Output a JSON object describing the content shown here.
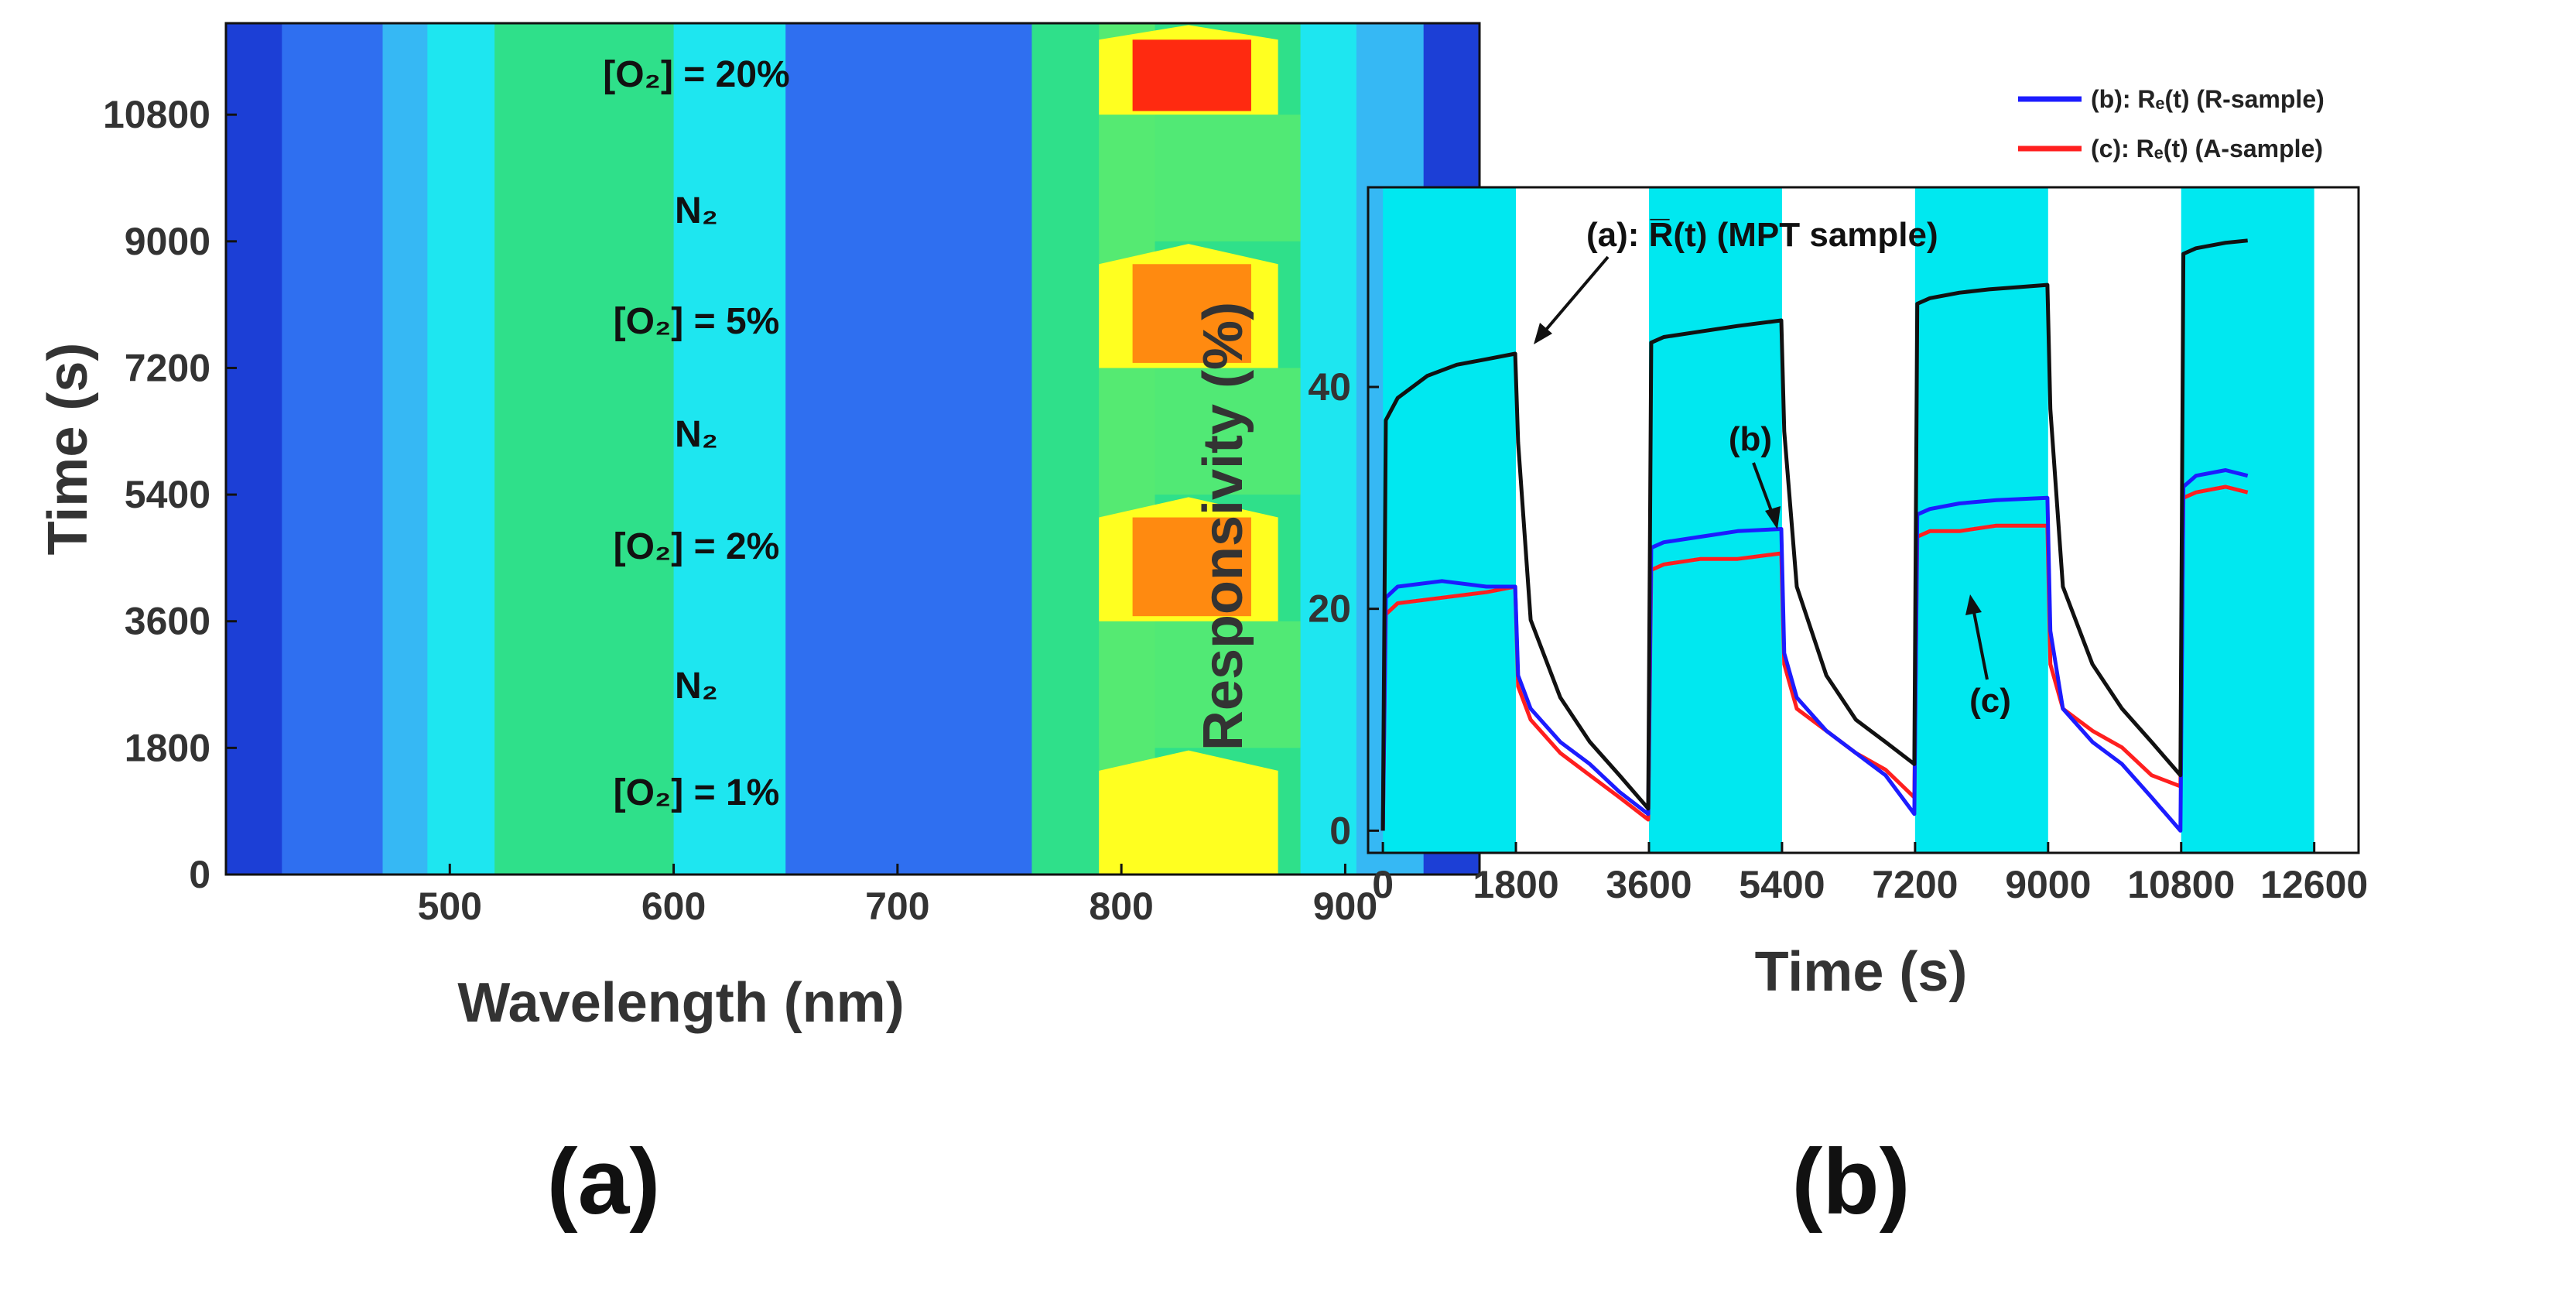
{
  "colors": {
    "deep_blue": "#1c3fd6",
    "blue": "#2f6ff0",
    "sky": "#36b8f4",
    "cyan": "#1ee6f0",
    "green": "#2fe08a",
    "green_light": "#55ea72",
    "yellow": "#ffff20",
    "orange": "#ff8a10",
    "red": "#ff2a10",
    "shade": "#00e8f0",
    "curve_a": "#111111",
    "curve_b": "#1c1cff",
    "curve_c": "#ff1f1f"
  },
  "panel_a": {
    "panel_label": "(a)",
    "xlabel": "Wavelength (nm)",
    "ylabel": "Time (s)",
    "labels": {
      "o2_20": "[O₂] = 20%",
      "n2_top": "N₂",
      "o2_5": "[O₂] = 5%",
      "n2_mid": "N₂",
      "o2_2": "[O₂] = 2%",
      "n2_bot": "N₂",
      "o2_1": "[O₂] = 1%"
    }
  },
  "panel_b": {
    "panel_label": "(b)",
    "annotations": {
      "a_label": "(a): R̅(t) (MPT sample)",
      "b_label": "(b)",
      "c_label": "(c)"
    },
    "legend": [
      {
        "label": "(b): Rₑ(t) (R-sample)",
        "color": "#1c1cff"
      },
      {
        "label": "(c): Rₑ(t) (A-sample)",
        "color": "#ff1f1f"
      }
    ]
  },
  "chart_data": [
    {
      "type": "heatmap",
      "title": "",
      "xlabel": "Wavelength (nm)",
      "ylabel": "Time (s)",
      "xlim": [
        400,
        960
      ],
      "ylim": [
        0,
        12100
      ],
      "xticks": [
        500,
        600,
        700,
        800,
        900
      ],
      "yticks": [
        0,
        1800,
        3600,
        5400,
        7200,
        9000,
        10800
      ],
      "intervals": [
        {
          "start": 0,
          "end": 1800,
          "gas": "[O2] = 1%",
          "peak": "yellow"
        },
        {
          "start": 1800,
          "end": 3600,
          "gas": "N2",
          "peak": "green"
        },
        {
          "start": 3600,
          "end": 5400,
          "gas": "[O2] = 2%",
          "peak": "orange"
        },
        {
          "start": 5400,
          "end": 7200,
          "gas": "N2",
          "peak": "green"
        },
        {
          "start": 7200,
          "end": 9000,
          "gas": "[O2] = 5%",
          "peak": "orange"
        },
        {
          "start": 9000,
          "end": 10800,
          "gas": "N2",
          "peak": "green"
        },
        {
          "start": 10800,
          "end": 12100,
          "gas": "[O2] = 20%",
          "peak": "red"
        }
      ]
    },
    {
      "type": "line",
      "title": "",
      "xlabel": "Time (s)",
      "ylabel": "Responsivity (%)",
      "xlim": [
        -200,
        13200
      ],
      "ylim": [
        -2,
        58
      ],
      "xticks": [
        0,
        1800,
        3600,
        5400,
        7200,
        9000,
        10800,
        12600
      ],
      "yticks": [
        0,
        20,
        40
      ],
      "shaded_intervals": [
        [
          0,
          1800
        ],
        [
          3600,
          5400
        ],
        [
          7200,
          9000
        ],
        [
          10800,
          12600
        ]
      ],
      "series": [
        {
          "name": "(a): R̅(t) (MPT sample)",
          "color": "#111111",
          "x": [
            0,
            40,
            200,
            600,
            1000,
            1400,
            1790,
            1830,
            2000,
            2400,
            2800,
            3200,
            3590,
            3630,
            3800,
            4300,
            4800,
            5390,
            5430,
            5600,
            6000,
            6400,
            6800,
            7190,
            7230,
            7400,
            7800,
            8200,
            8600,
            8990,
            9030,
            9200,
            9600,
            10000,
            10400,
            10790,
            10830,
            11000,
            11400,
            11700
          ],
          "y": [
            0,
            37,
            39,
            41,
            42,
            42.5,
            43,
            35,
            19,
            12,
            8,
            5,
            2,
            44,
            44.5,
            45,
            45.5,
            46,
            36,
            22,
            14,
            10,
            8,
            6,
            47.5,
            48,
            48.5,
            48.8,
            49,
            49.2,
            38,
            22,
            15,
            11,
            8,
            5,
            52,
            52.5,
            53,
            53.2
          ]
        },
        {
          "name": "(b): Rₑ(t) (R-sample)",
          "color": "#1c1cff",
          "x": [
            0,
            40,
            200,
            800,
            1400,
            1790,
            1830,
            2000,
            2400,
            2800,
            3200,
            3590,
            3630,
            3800,
            4300,
            4800,
            5390,
            5430,
            5600,
            6000,
            6400,
            6800,
            7190,
            7230,
            7400,
            7800,
            8300,
            8990,
            9030,
            9200,
            9600,
            10000,
            10400,
            10790,
            10830,
            11000,
            11400,
            11700
          ],
          "y": [
            0,
            21,
            22,
            22.5,
            22,
            22,
            14,
            11,
            8,
            6,
            3.5,
            1.5,
            25.5,
            26,
            26.5,
            27,
            27.2,
            16,
            12,
            9,
            7,
            5,
            1.5,
            28.5,
            29,
            29.5,
            29.8,
            30,
            18,
            11,
            8,
            6,
            3,
            0,
            31,
            32,
            32.5,
            32
          ]
        },
        {
          "name": "(c): Rₑ(t) (A-sample)",
          "color": "#ff1f1f",
          "x": [
            0,
            40,
            200,
            800,
            1400,
            1790,
            1830,
            2000,
            2400,
            2800,
            3200,
            3590,
            3630,
            3800,
            4300,
            4800,
            5390,
            5430,
            5600,
            6000,
            6400,
            6800,
            7190,
            7230,
            7400,
            7800,
            8300,
            8990,
            9030,
            9200,
            9600,
            10000,
            10400,
            10790,
            10830,
            11000,
            11400,
            11700
          ],
          "y": [
            0,
            19.5,
            20.5,
            21,
            21.5,
            22,
            13,
            10,
            7,
            5,
            3,
            1,
            23.5,
            24,
            24.5,
            24.5,
            25,
            15,
            11,
            9,
            7,
            5.5,
            3,
            26.5,
            27,
            27,
            27.5,
            27.5,
            15,
            11,
            9,
            7.5,
            5,
            4,
            30,
            30.5,
            31,
            30.5
          ]
        }
      ]
    }
  ]
}
